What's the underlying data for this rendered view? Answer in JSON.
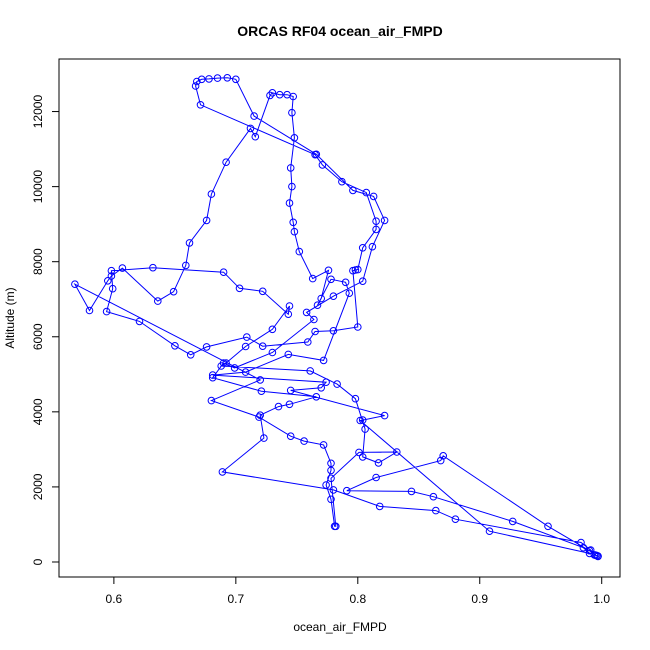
{
  "chart_data": {
    "type": "line",
    "title": "ORCAS RF04 ocean_air_FMPD",
    "xlabel": "ocean_air_FMPD",
    "ylabel": "Altitude (m)",
    "xlim": [
      0.555,
      1.015
    ],
    "ylim": [
      -400,
      13400
    ],
    "x_ticks": [
      0.6,
      0.7,
      0.8,
      0.9,
      1.0
    ],
    "x_tick_labels": [
      "0.6",
      "0.7",
      "0.8",
      "0.9",
      "1.0"
    ],
    "y_ticks": [
      0,
      2000,
      4000,
      6000,
      8000,
      10000,
      12000
    ],
    "y_tick_labels": [
      "0",
      "2000",
      "4000",
      "6000",
      "8000",
      "10000",
      "12000"
    ],
    "grid": false,
    "markers": "open-circle",
    "series": [
      {
        "color": "#0000ff",
        "points": [
          [
            0.997,
            150
          ],
          [
            0.995,
            180
          ],
          [
            0.99,
            300
          ],
          [
            0.956,
            950
          ],
          [
            0.87,
            2830
          ],
          [
            0.868,
            2700
          ],
          [
            0.815,
            2250
          ],
          [
            0.791,
            1900
          ],
          [
            0.844,
            1880
          ],
          [
            0.862,
            1740
          ],
          [
            0.927,
            1080
          ],
          [
            0.985,
            380
          ],
          [
            0.99,
            230
          ],
          [
            0.908,
            820
          ],
          [
            0.802,
            3770
          ],
          [
            0.804,
            3780
          ],
          [
            0.822,
            3900
          ],
          [
            0.745,
            4570
          ],
          [
            0.77,
            4640
          ],
          [
            0.774,
            4790
          ],
          [
            0.681,
            4980
          ],
          [
            0.708,
            5060
          ],
          [
            0.743,
            5530
          ],
          [
            0.772,
            5370
          ],
          [
            0.793,
            7160
          ],
          [
            0.79,
            7450
          ],
          [
            0.778,
            7530
          ],
          [
            0.767,
            6840
          ],
          [
            0.77,
            7020
          ],
          [
            0.776,
            7770
          ],
          [
            0.763,
            7550
          ],
          [
            0.752,
            8270
          ],
          [
            0.748,
            8800
          ],
          [
            0.747,
            9050
          ],
          [
            0.744,
            9560
          ],
          [
            0.746,
            10000
          ],
          [
            0.745,
            10500
          ],
          [
            0.748,
            11300
          ],
          [
            0.746,
            11970
          ],
          [
            0.747,
            12400
          ],
          [
            0.742,
            12450
          ],
          [
            0.736,
            12450
          ],
          [
            0.73,
            12500
          ],
          [
            0.728,
            12430
          ],
          [
            0.716,
            11330
          ],
          [
            0.712,
            11550
          ],
          [
            0.692,
            10650
          ],
          [
            0.68,
            9800
          ],
          [
            0.676,
            9100
          ],
          [
            0.662,
            8500
          ],
          [
            0.659,
            7900
          ],
          [
            0.649,
            7200
          ],
          [
            0.636,
            6950
          ],
          [
            0.607,
            7830
          ],
          [
            0.598,
            7620
          ],
          [
            0.595,
            7490
          ],
          [
            0.58,
            6700
          ],
          [
            0.568,
            7400
          ],
          [
            0.72,
            4850
          ],
          [
            0.68,
            4300
          ],
          [
            0.719,
            3860
          ],
          [
            0.745,
            3350
          ],
          [
            0.756,
            3220
          ],
          [
            0.772,
            3120
          ],
          [
            0.778,
            2630
          ],
          [
            0.778,
            2440
          ],
          [
            0.774,
            2050
          ],
          [
            0.778,
            1670
          ],
          [
            0.781,
            950
          ],
          [
            0.782,
            950
          ],
          [
            0.778,
            2230
          ],
          [
            0.801,
            2920
          ],
          [
            0.832,
            2930
          ],
          [
            0.817,
            2640
          ],
          [
            0.804,
            2800
          ],
          [
            0.806,
            3540
          ],
          [
            0.798,
            4350
          ],
          [
            0.783,
            4740
          ],
          [
            0.761,
            5090
          ],
          [
            0.688,
            5220
          ],
          [
            0.692,
            5300
          ],
          [
            0.708,
            5740
          ],
          [
            0.73,
            6200
          ],
          [
            0.744,
            6820
          ],
          [
            0.743,
            6600
          ],
          [
            0.722,
            7210
          ],
          [
            0.703,
            7290
          ],
          [
            0.69,
            7720
          ],
          [
            0.632,
            7840
          ],
          [
            0.598,
            7760
          ],
          [
            0.599,
            7280
          ],
          [
            0.594,
            6670
          ],
          [
            0.621,
            6410
          ],
          [
            0.65,
            5760
          ],
          [
            0.663,
            5520
          ],
          [
            0.676,
            5730
          ],
          [
            0.709,
            5990
          ],
          [
            0.722,
            5750
          ],
          [
            0.759,
            5860
          ],
          [
            0.765,
            6140
          ],
          [
            0.78,
            6160
          ],
          [
            0.8,
            6260
          ],
          [
            0.796,
            7760
          ],
          [
            0.798,
            7780
          ],
          [
            0.8,
            7790
          ],
          [
            0.804,
            8370
          ],
          [
            0.815,
            8860
          ],
          [
            0.815,
            9080
          ],
          [
            0.807,
            9840
          ],
          [
            0.787,
            10130
          ],
          [
            0.771,
            10580
          ],
          [
            0.765,
            10850
          ],
          [
            0.671,
            12180
          ],
          [
            0.667,
            12680
          ],
          [
            0.668,
            12800
          ],
          [
            0.672,
            12860
          ],
          [
            0.678,
            12870
          ],
          [
            0.685,
            12890
          ],
          [
            0.693,
            12900
          ],
          [
            0.7,
            12860
          ],
          [
            0.715,
            11880
          ],
          [
            0.766,
            10860
          ],
          [
            0.796,
            9900
          ],
          [
            0.813,
            9740
          ],
          [
            0.822,
            9100
          ],
          [
            0.812,
            8400
          ],
          [
            0.804,
            7480
          ],
          [
            0.78,
            7080
          ],
          [
            0.758,
            6650
          ],
          [
            0.764,
            6460
          ],
          [
            0.73,
            5580
          ],
          [
            0.699,
            5170
          ],
          [
            0.69,
            5300
          ],
          [
            0.681,
            4910
          ],
          [
            0.721,
            4550
          ],
          [
            0.766,
            4400
          ],
          [
            0.744,
            4200
          ],
          [
            0.735,
            4140
          ],
          [
            0.72,
            3910
          ],
          [
            0.723,
            3300
          ],
          [
            0.689,
            2400
          ],
          [
            0.78,
            1920
          ],
          [
            0.818,
            1480
          ],
          [
            0.864,
            1370
          ],
          [
            0.88,
            1140
          ],
          [
            0.983,
            520
          ],
          [
            0.991,
            320
          ],
          [
            0.994,
            190
          ],
          [
            0.996,
            170
          ],
          [
            0.997,
            160
          ]
        ]
      }
    ]
  }
}
